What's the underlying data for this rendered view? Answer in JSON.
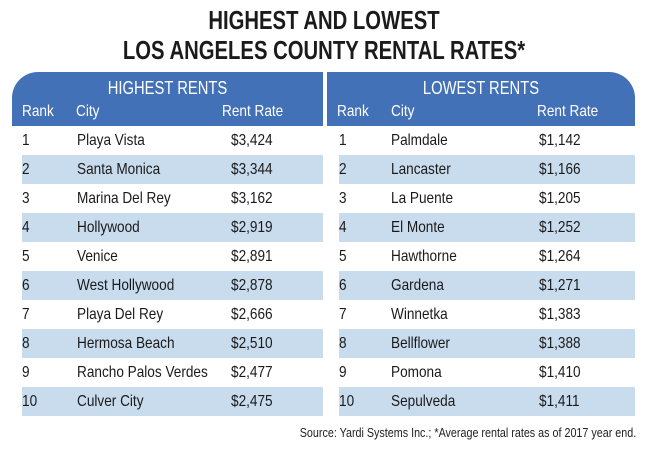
{
  "title": {
    "line1": "HIGHEST AND LOWEST",
    "line2": "LOS ANGELES COUNTY RENTAL RATES*"
  },
  "colors": {
    "header_blue": "#4371b8",
    "stripe_blue": "#c9dcee"
  },
  "highest": {
    "heading": "HIGHEST RENTS",
    "columns": {
      "rank": "Rank",
      "city": "City",
      "rate": "Rent Rate"
    },
    "rows": [
      {
        "rank": "1",
        "city": "Playa Vista",
        "rate": "$3,424"
      },
      {
        "rank": "2",
        "city": "Santa Monica",
        "rate": "$3,344"
      },
      {
        "rank": "3",
        "city": "Marina Del Rey",
        "rate": "$3,162"
      },
      {
        "rank": "4",
        "city": "Hollywood",
        "rate": "$2,919"
      },
      {
        "rank": "5",
        "city": "Venice",
        "rate": "$2,891"
      },
      {
        "rank": "6",
        "city": "West Hollywood",
        "rate": "$2,878"
      },
      {
        "rank": "7",
        "city": "Playa Del Rey",
        "rate": "$2,666"
      },
      {
        "rank": "8",
        "city": "Hermosa Beach",
        "rate": "$2,510"
      },
      {
        "rank": "9",
        "city": "Rancho Palos Verdes",
        "rate": "$2,477"
      },
      {
        "rank": "10",
        "city": "Culver City",
        "rate": "$2,475"
      }
    ]
  },
  "lowest": {
    "heading": "LOWEST RENTS",
    "columns": {
      "rank": "Rank",
      "city": "City",
      "rate": "Rent Rate"
    },
    "rows": [
      {
        "rank": "1",
        "city": "Palmdale",
        "rate": "$1,142"
      },
      {
        "rank": "2",
        "city": "Lancaster",
        "rate": "$1,166"
      },
      {
        "rank": "3",
        "city": "La Puente",
        "rate": "$1,205"
      },
      {
        "rank": "4",
        "city": "El Monte",
        "rate": "$1,252"
      },
      {
        "rank": "5",
        "city": "Hawthorne",
        "rate": "$1,264"
      },
      {
        "rank": "6",
        "city": "Gardena",
        "rate": "$1,271"
      },
      {
        "rank": "7",
        "city": "Winnetka",
        "rate": "$1,383"
      },
      {
        "rank": "8",
        "city": "Bellflower",
        "rate": "$1,388"
      },
      {
        "rank": "9",
        "city": "Pomona",
        "rate": "$1,410"
      },
      {
        "rank": "10",
        "city": "Sepulveda",
        "rate": "$1,411"
      }
    ]
  },
  "source": "Source: Yardi Systems Inc.; *Average rental rates as of 2017 year end."
}
